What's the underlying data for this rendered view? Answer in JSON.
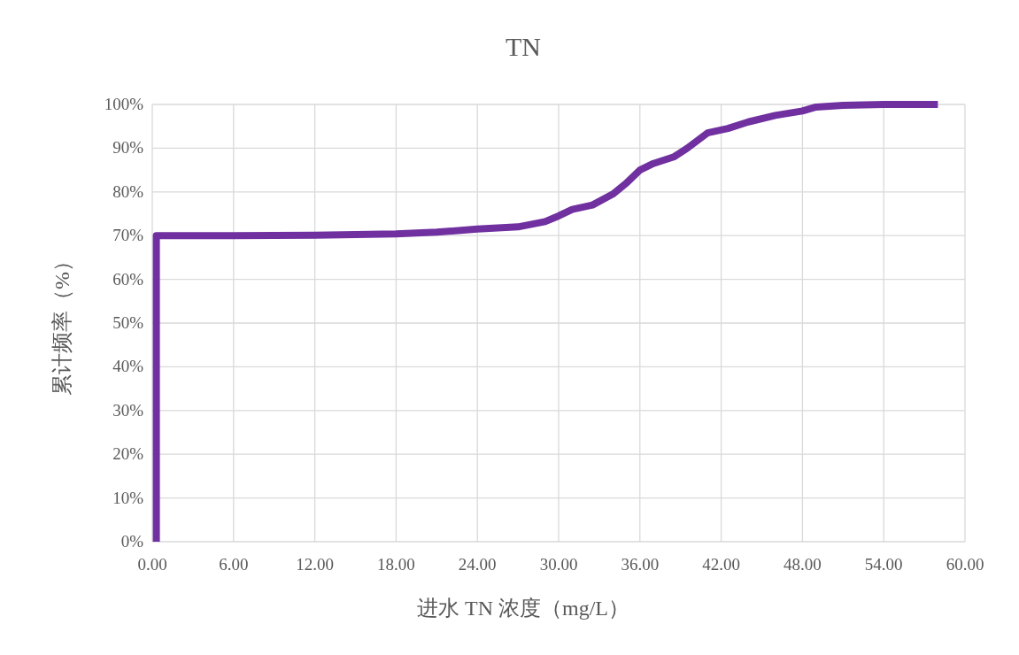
{
  "chart_data": {
    "type": "line",
    "title": "TN",
    "xlabel": "进水 TN 浓度（mg/L）",
    "ylabel": "累计频率（%）",
    "xlim": [
      0,
      60
    ],
    "ylim": [
      0,
      100
    ],
    "xticks": [
      {
        "value": 0,
        "label": "0.00"
      },
      {
        "value": 6,
        "label": "6.00"
      },
      {
        "value": 12,
        "label": "12.00"
      },
      {
        "value": 18,
        "label": "18.00"
      },
      {
        "value": 24,
        "label": "24.00"
      },
      {
        "value": 30,
        "label": "30.00"
      },
      {
        "value": 36,
        "label": "36.00"
      },
      {
        "value": 42,
        "label": "42.00"
      },
      {
        "value": 48,
        "label": "48.00"
      },
      {
        "value": 54,
        "label": "54.00"
      },
      {
        "value": 60,
        "label": "60.00"
      }
    ],
    "yticks": [
      {
        "value": 0,
        "label": "0%"
      },
      {
        "value": 10,
        "label": "10%"
      },
      {
        "value": 20,
        "label": "20%"
      },
      {
        "value": 30,
        "label": "30%"
      },
      {
        "value": 40,
        "label": "40%"
      },
      {
        "value": 50,
        "label": "50%"
      },
      {
        "value": 60,
        "label": "60%"
      },
      {
        "value": 70,
        "label": "70%"
      },
      {
        "value": 80,
        "label": "80%"
      },
      {
        "value": 90,
        "label": "90%"
      },
      {
        "value": 100,
        "label": "100%"
      }
    ],
    "grid": true,
    "marker": "none",
    "line_style": "solid",
    "series": [
      {
        "color": "#7030a0",
        "x": [
          0.3,
          0.3,
          6,
          12,
          18,
          21,
          24,
          27,
          29,
          30,
          31,
          32.5,
          34,
          35,
          36,
          37,
          38.5,
          39.5,
          41,
          42.5,
          44,
          46,
          48,
          49,
          51,
          54,
          58
        ],
        "values": [
          0,
          70,
          70,
          70.1,
          70.4,
          70.8,
          71.5,
          72,
          73.2,
          74.5,
          76,
          77,
          79.5,
          82,
          85,
          86.5,
          88,
          90,
          93.5,
          94.5,
          96,
          97.5,
          98.5,
          99.4,
          99.8,
          100,
          100
        ]
      }
    ]
  }
}
